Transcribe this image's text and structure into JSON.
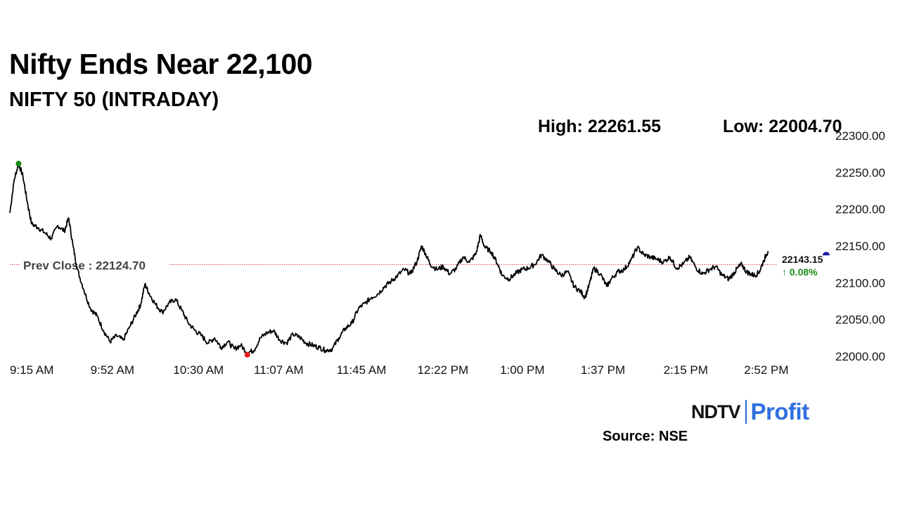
{
  "headline": "Nifty Ends Near 22,100",
  "subheadline": "NIFTY 50 (INTRADAY)",
  "stats": {
    "high": "High: 22261.55",
    "low": "Low: 22004.70"
  },
  "source": "Source: NSE",
  "logo": {
    "left": "NDTV",
    "right": "Profit"
  },
  "chart_data": {
    "type": "line",
    "ylim": [
      22000,
      22300
    ],
    "y_ticks": [
      "22000.00",
      "22050.00",
      "22100.00",
      "22150.00",
      "22200.00",
      "22250.00",
      "22300.00"
    ],
    "x_ticks": [
      "9:15 AM",
      "9:52 AM",
      "10:30 AM",
      "11:07 AM",
      "11:45 AM",
      "12:22 PM",
      "1:00 PM",
      "1:37 PM",
      "2:15 PM",
      "2:52 PM"
    ],
    "session_minutes": [
      555,
      930
    ],
    "x_tick_minutes": [
      555,
      592,
      630,
      667,
      705,
      742,
      780,
      817,
      855,
      892
    ],
    "series": [
      {
        "points": [
          [
            555,
            22195
          ],
          [
            557,
            22240
          ],
          [
            559,
            22262
          ],
          [
            561,
            22245
          ],
          [
            563,
            22210
          ],
          [
            565,
            22180
          ],
          [
            568,
            22175
          ],
          [
            571,
            22168
          ],
          [
            574,
            22160
          ],
          [
            577,
            22178
          ],
          [
            580,
            22170
          ],
          [
            582,
            22188
          ],
          [
            584,
            22150
          ],
          [
            586,
            22118
          ],
          [
            589,
            22090
          ],
          [
            592,
            22065
          ],
          [
            595,
            22055
          ],
          [
            598,
            22035
          ],
          [
            601,
            22020
          ],
          [
            604,
            22028
          ],
          [
            607,
            22022
          ],
          [
            610,
            22040
          ],
          [
            613,
            22058
          ],
          [
            615,
            22070
          ],
          [
            617,
            22098
          ],
          [
            619,
            22085
          ],
          [
            622,
            22070
          ],
          [
            625,
            22060
          ],
          [
            628,
            22072
          ],
          [
            631,
            22078
          ],
          [
            634,
            22062
          ],
          [
            637,
            22045
          ],
          [
            640,
            22035
          ],
          [
            643,
            22028
          ],
          [
            646,
            22018
          ],
          [
            649,
            22025
          ],
          [
            652,
            22012
          ],
          [
            655,
            22020
          ],
          [
            658,
            22010
          ],
          [
            661,
            22015
          ],
          [
            664,
            22005
          ],
          [
            667,
            22008
          ],
          [
            670,
            22025
          ],
          [
            673,
            22032
          ],
          [
            676,
            22035
          ],
          [
            679,
            22022
          ],
          [
            682,
            22018
          ],
          [
            685,
            22030
          ],
          [
            688,
            22026
          ],
          [
            691,
            22018
          ],
          [
            694,
            22015
          ],
          [
            697,
            22012
          ],
          [
            700,
            22008
          ],
          [
            703,
            22010
          ],
          [
            706,
            22025
          ],
          [
            709,
            22038
          ],
          [
            712,
            22045
          ],
          [
            715,
            22065
          ],
          [
            718,
            22072
          ],
          [
            721,
            22080
          ],
          [
            724,
            22085
          ],
          [
            727,
            22095
          ],
          [
            730,
            22102
          ],
          [
            733,
            22110
          ],
          [
            736,
            22118
          ],
          [
            739,
            22112
          ],
          [
            742,
            22130
          ],
          [
            744,
            22150
          ],
          [
            746,
            22138
          ],
          [
            748,
            22125
          ],
          [
            751,
            22118
          ],
          [
            754,
            22122
          ],
          [
            757,
            22112
          ],
          [
            760,
            22120
          ],
          [
            763,
            22135
          ],
          [
            766,
            22128
          ],
          [
            769,
            22140
          ],
          [
            771,
            22165
          ],
          [
            773,
            22148
          ],
          [
            776,
            22142
          ],
          [
            779,
            22125
          ],
          [
            781,
            22110
          ],
          [
            784,
            22105
          ],
          [
            787,
            22112
          ],
          [
            790,
            22118
          ],
          [
            793,
            22120
          ],
          [
            796,
            22125
          ],
          [
            799,
            22138
          ],
          [
            802,
            22130
          ],
          [
            805,
            22118
          ],
          [
            808,
            22110
          ],
          [
            811,
            22115
          ],
          [
            814,
            22095
          ],
          [
            817,
            22088
          ],
          [
            819,
            22080
          ],
          [
            821,
            22098
          ],
          [
            823,
            22120
          ],
          [
            826,
            22112
          ],
          [
            829,
            22095
          ],
          [
            831,
            22105
          ],
          [
            834,
            22115
          ],
          [
            837,
            22118
          ],
          [
            840,
            22130
          ],
          [
            843,
            22148
          ],
          [
            846,
            22138
          ],
          [
            849,
            22135
          ],
          [
            852,
            22132
          ],
          [
            855,
            22128
          ],
          [
            858,
            22135
          ],
          [
            861,
            22120
          ],
          [
            864,
            22125
          ],
          [
            867,
            22135
          ],
          [
            870,
            22120
          ],
          [
            873,
            22112
          ],
          [
            876,
            22118
          ],
          [
            879,
            22122
          ],
          [
            882,
            22110
          ],
          [
            885,
            22105
          ],
          [
            887,
            22112
          ],
          [
            889,
            22120
          ],
          [
            891,
            22125
          ],
          [
            893,
            22115
          ],
          [
            895,
            22112
          ],
          [
            897,
            22110
          ],
          [
            899,
            22115
          ],
          [
            901,
            22130
          ],
          [
            903,
            22143
          ]
        ]
      }
    ],
    "markers": {
      "high_minute": 559,
      "low_minute": 664,
      "last_minute": 903
    },
    "reference_line": {
      "label": "Prev Close : 22124.70",
      "value": 22124.7
    },
    "last": {
      "value": "22143.15",
      "change": "↑ 0.08%"
    },
    "colors": {
      "line": "#000000",
      "prev_close": "#e05050",
      "high_marker": "#138a13",
      "low_marker": "#e81b1b",
      "last_marker": "#1a1aa8",
      "change_text": "#1a8c1a"
    }
  }
}
